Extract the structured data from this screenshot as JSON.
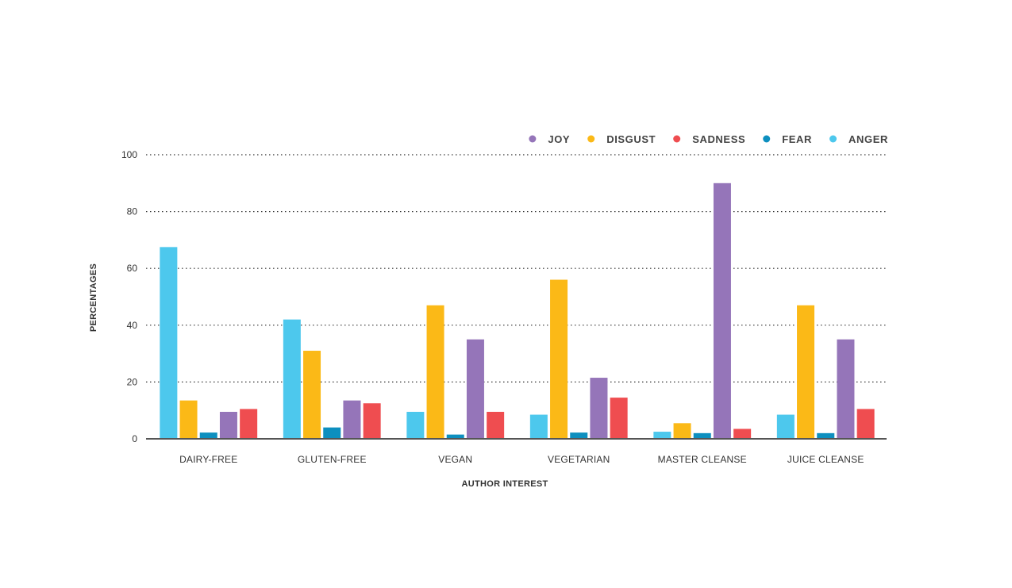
{
  "chart_data": {
    "type": "bar",
    "title": "",
    "xlabel": "AUTHOR INTEREST",
    "ylabel": "PERCENTAGES",
    "ylim": [
      0,
      100
    ],
    "yticks": [
      0,
      20,
      40,
      60,
      80,
      100
    ],
    "grid": "horizontal-dotted",
    "legend_position": "top-right",
    "categories": [
      "DAIRY-FREE",
      "GLUTEN-FREE",
      "VEGAN",
      "VEGETARIAN",
      "MASTER CLEANSE",
      "JUICE CLEANSE"
    ],
    "bar_order": [
      "ANGER",
      "DISGUST",
      "FEAR",
      "JOY",
      "SADNESS"
    ],
    "legend_order": [
      "JOY",
      "DISGUST",
      "SADNESS",
      "FEAR",
      "ANGER"
    ],
    "series": [
      {
        "name": "JOY",
        "color": "#9575b9",
        "values": [
          9.5,
          13.5,
          35,
          21.5,
          90,
          35
        ]
      },
      {
        "name": "DISGUST",
        "color": "#fbb917",
        "values": [
          13.5,
          31,
          47,
          56,
          5.5,
          47
        ]
      },
      {
        "name": "SADNESS",
        "color": "#ef4d50",
        "values": [
          10.5,
          12.5,
          9.5,
          14.5,
          3.5,
          10.5
        ]
      },
      {
        "name": "FEAR",
        "color": "#0d8fbf",
        "values": [
          2.2,
          4,
          1.5,
          2.2,
          2,
          2
        ]
      },
      {
        "name": "ANGER",
        "color": "#4dc8ed",
        "values": [
          67.5,
          42,
          9.5,
          8.5,
          2.5,
          8.5
        ]
      }
    ]
  }
}
